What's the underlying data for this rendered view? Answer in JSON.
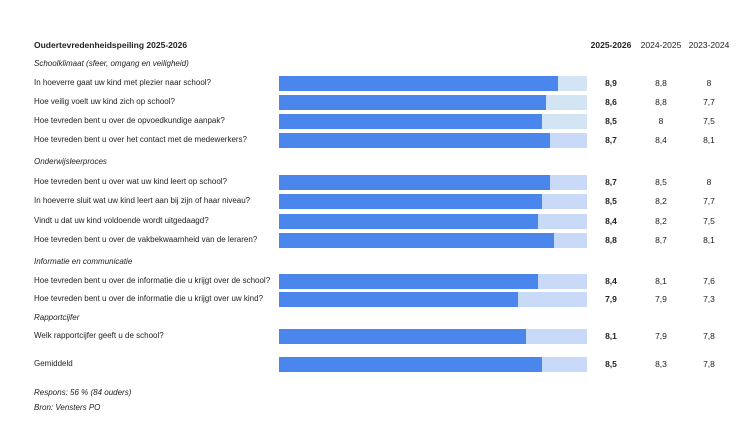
{
  "title": "Oudertevredenheidspeiling 2025-2026",
  "columns": [
    "2025-2026",
    "2024-2025",
    "2023-2024"
  ],
  "colors": {
    "fill": "#4a86ec",
    "track_a": "#d3e4f5",
    "track_b": "#c9daf8"
  },
  "chart_data": {
    "type": "bar",
    "orientation": "horizontal",
    "xlim": [
      0,
      10
    ],
    "sections": [
      {
        "name": "Schoolklimaat (sfeer, omgang en veiligheid)",
        "rows": [
          {
            "label": "In hoeverre gaat uw kind met plezier naar school?",
            "bar": 8.9,
            "values": [
              "8,9",
              "8,8",
              "8"
            ]
          },
          {
            "label": "Hoe veilig voelt uw kind zich op school?",
            "bar": 8.6,
            "values": [
              "8,6",
              "8,8",
              "7,7"
            ]
          },
          {
            "label": "Hoe tevreden bent u over de opvoedkundige aanpak?",
            "bar": 8.5,
            "values": [
              "8,5",
              "8",
              "7,5"
            ]
          },
          {
            "label": "Hoe tevreden bent u over het contact met de medewerkers?",
            "bar": 8.7,
            "values": [
              "8,7",
              "8,4",
              "8,1"
            ]
          }
        ]
      },
      {
        "name": "Onderwijsleerproces",
        "rows": [
          {
            "label": "Hoe tevreden bent u over wat uw kind leert op school?",
            "bar": 8.7,
            "values": [
              "8,7",
              "8,5",
              "8"
            ]
          },
          {
            "label": "In hoeverre sluit wat uw kind leert aan bij zijn of haar niveau?",
            "bar": 8.5,
            "values": [
              "8,5",
              "8,2",
              "7,7"
            ]
          },
          {
            "label": "Vindt u dat uw kind voldoende wordt uitgedaagd?",
            "bar": 8.4,
            "values": [
              "8,4",
              "8,2",
              "7,5"
            ]
          },
          {
            "label": "Hoe tevreden bent u over de vakbekwaamheid van de leraren?",
            "bar": 8.8,
            "values": [
              "8,8",
              "8,7",
              "8,1"
            ]
          }
        ]
      },
      {
        "name": "Informatie en communicatie",
        "rows": [
          {
            "label": "Hoe tevreden bent u over de informatie die u krijgt over de school?",
            "bar": 8.4,
            "values": [
              "8,4",
              "8,1",
              "7,6"
            ]
          },
          {
            "label": "Hoe tevreden bent u over de informatie die u krijgt over uw kind?",
            "bar": 7.9,
            "values": [
              "7,9",
              "7,9",
              "7,3"
            ]
          }
        ]
      },
      {
        "name": "Rapportcijfer",
        "rows": [
          {
            "label": "Welk rapportcijfer geeft u de school?",
            "bar": 8.1,
            "values": [
              "8,1",
              "7,9",
              "7,8"
            ]
          }
        ]
      },
      {
        "name": "",
        "rows": [
          {
            "label": "Gemiddeld",
            "bar": 8.5,
            "values": [
              "8,5",
              "8,3",
              "7,8"
            ]
          }
        ]
      }
    ]
  },
  "footer": {
    "respons": "Respons: 56 % (84 ouders)",
    "bron": "Bron: Vensters PO"
  }
}
